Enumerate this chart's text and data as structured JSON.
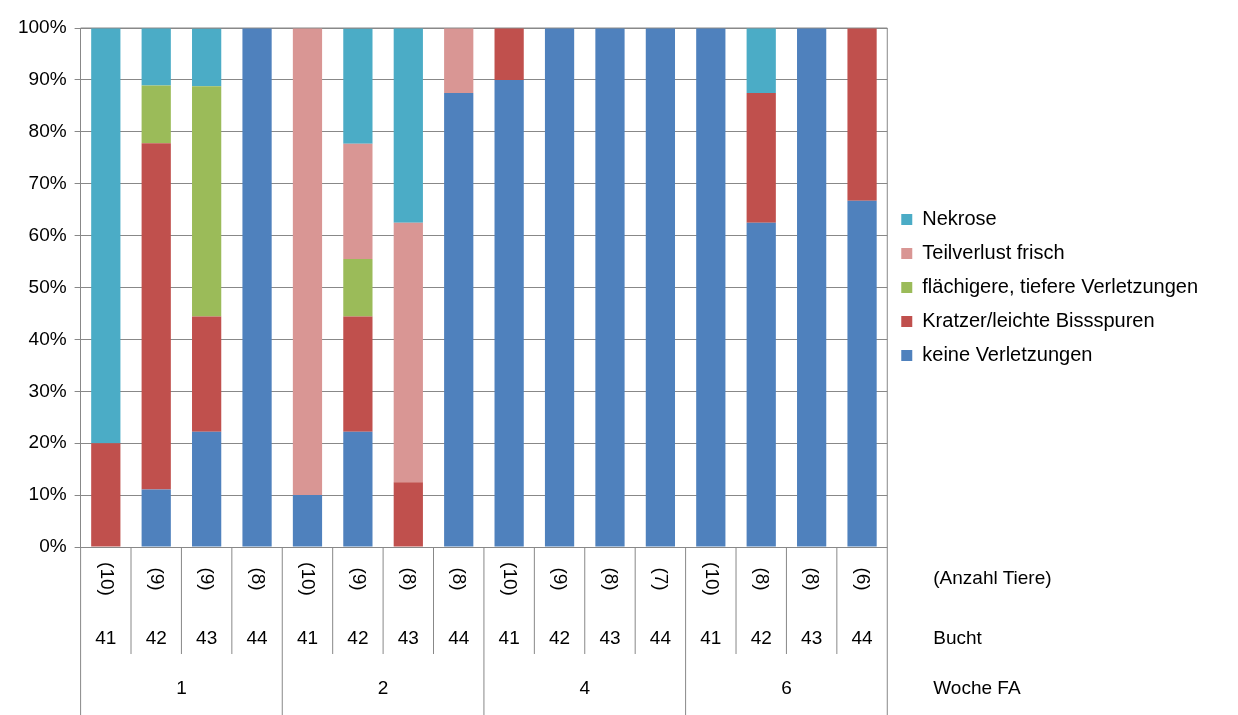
{
  "chart_data": {
    "type": "bar",
    "stacked": true,
    "categories": [
      "41",
      "42",
      "43",
      "44",
      "41",
      "42",
      "43",
      "44",
      "41",
      "42",
      "43",
      "44",
      "41",
      "42",
      "43",
      "44"
    ],
    "series": [
      {
        "name": "keine Verletzungen",
        "color": "#4f81bd",
        "values": [
          0,
          11.1,
          22.2,
          100,
          10,
          22.2,
          0,
          87.5,
          90,
          100,
          100,
          100,
          100,
          62.5,
          100,
          66.7
        ]
      },
      {
        "name": "Kratzer/leichte Bissspuren",
        "color": "#c0504d",
        "values": [
          20,
          66.7,
          22.2,
          0,
          0,
          22.2,
          12.5,
          0,
          10,
          0,
          0,
          0,
          0,
          25,
          0,
          33.3
        ]
      },
      {
        "name": "flächigere, tiefere Verletzungen",
        "color": "#9bbb59",
        "values": [
          0,
          11.1,
          44.4,
          0,
          0,
          11.1,
          0,
          0,
          0,
          0,
          0,
          0,
          0,
          0,
          0,
          0
        ]
      },
      {
        "name": "Teilverlust frisch",
        "color": "#d99694",
        "values": [
          0,
          0,
          0,
          0,
          90,
          22.2,
          50,
          12.5,
          0,
          0,
          0,
          0,
          0,
          0,
          0,
          0
        ]
      },
      {
        "name": "Nekrose",
        "color": "#4bacc6",
        "values": [
          80,
          11.1,
          11.1,
          0,
          0,
          22.2,
          37.5,
          0,
          0,
          0,
          0,
          0,
          0,
          12.5,
          0,
          0
        ]
      }
    ],
    "ylim": [
      0,
      100
    ],
    "yticks": [
      {
        "value": 0,
        "label": "0%"
      },
      {
        "value": 10,
        "label": "10%"
      },
      {
        "value": 20,
        "label": "20%"
      },
      {
        "value": 30,
        "label": "30%"
      },
      {
        "value": 40,
        "label": "40%"
      },
      {
        "value": 50,
        "label": "50%"
      },
      {
        "value": 60,
        "label": "60%"
      },
      {
        "value": 70,
        "label": "70%"
      },
      {
        "value": 80,
        "label": "80%"
      },
      {
        "value": 90,
        "label": "90%"
      },
      {
        "value": 100,
        "label": "100%"
      }
    ],
    "grid": "y",
    "legend": "right",
    "annotations": [
      "(10)",
      "(9)",
      "(9)",
      "(8)",
      "(10)",
      "(9)",
      "(8)",
      "(8)",
      "(10)",
      "(9)",
      "(8)",
      "(7)",
      "(10)",
      "(8)",
      "(8)",
      "(6)",
      "1",
      "2",
      "4",
      "6",
      "(Anzahl Tiere)",
      "Bucht",
      "Woche FA"
    ]
  }
}
